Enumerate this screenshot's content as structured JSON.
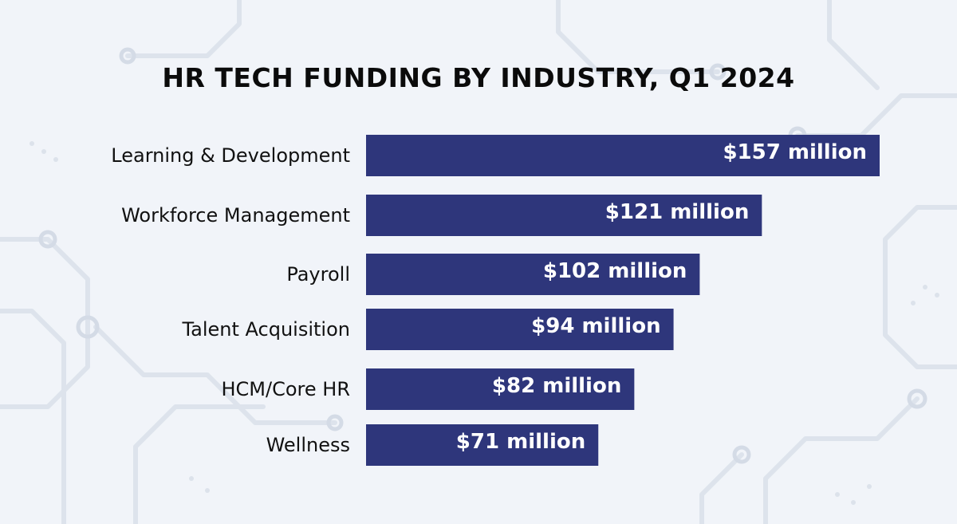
{
  "colors": {
    "bar": "#2e367b",
    "bar_label": "#ffffff",
    "category_label": "#111111",
    "background": "#f1f4f9",
    "circuit": "#d7dde8"
  },
  "chart_data": {
    "type": "bar",
    "orientation": "horizontal",
    "title": "HR TECH FUNDING BY INDUSTRY, Q1 2024",
    "categories": [
      "Learning & Development",
      "Workforce Management",
      "Payroll",
      "Talent Acquisition",
      "HCM/Core HR",
      "Wellness"
    ],
    "values": [
      157,
      121,
      102,
      94,
      82,
      71
    ],
    "data_labels": [
      "$157 million",
      "$121 million",
      "$102 million",
      "$94 million",
      "$82 million",
      "$71 million"
    ],
    "unit": "$ million",
    "xlim": [
      0,
      157
    ],
    "grid": false,
    "legend": "none",
    "data_label_position": "inside-end"
  }
}
